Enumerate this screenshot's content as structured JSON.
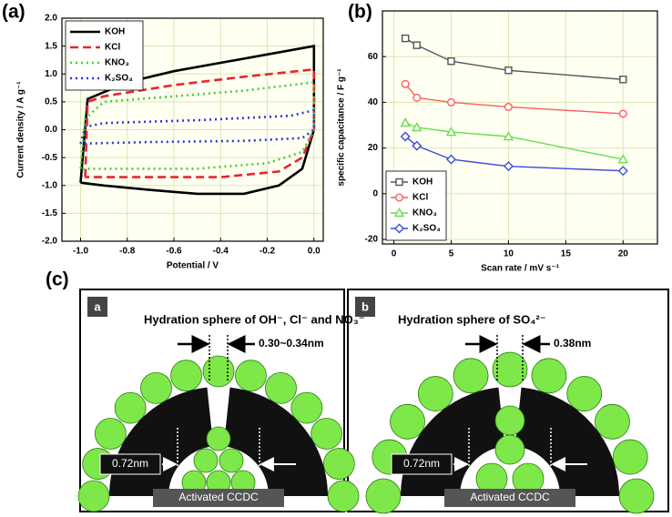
{
  "panel_labels": [
    "(a)",
    "(b)",
    "(c)"
  ],
  "chart_data": [
    {
      "type": "line",
      "xlabel": "Potential / V",
      "ylabel": "Current density / A g⁻¹",
      "xlim": [
        -1.08,
        0.04
      ],
      "ylim": [
        -2.0,
        2.0
      ],
      "xticks": [
        {
          "value": -1.0,
          "label": "-1.0"
        },
        -0.8,
        -0.6,
        -0.4,
        -0.2,
        {
          "value": 0.0,
          "label": "0.0"
        }
      ],
      "yticks": [
        {
          "value": -2.0,
          "label": "-2.0"
        },
        -1.5,
        {
          "value": -1.0,
          "label": "-1.0"
        },
        -0.5,
        {
          "value": 0.0,
          "label": "0.0"
        },
        0.5,
        {
          "value": 1.0,
          "label": "1.0"
        },
        1.5,
        {
          "value": 2.0,
          "label": "2.0"
        }
      ],
      "grid": true,
      "legend": "upper left",
      "series": [
        {
          "name": "KOH",
          "color": "#000000",
          "linestyle": "solid",
          "x": [
            -1.0,
            -0.97,
            -0.8,
            -0.6,
            -0.4,
            -0.2,
            0.0,
            0.0,
            -0.05,
            -0.15,
            -0.3,
            -0.5,
            -0.7,
            -0.9,
            -1.0
          ],
          "values": [
            -0.95,
            0.55,
            0.85,
            1.05,
            1.2,
            1.35,
            1.5,
            0.0,
            -0.7,
            -1.0,
            -1.15,
            -1.15,
            -1.08,
            -1.0,
            -0.95
          ]
        },
        {
          "name": "KCl",
          "color": "#e8262c",
          "linestyle": "dashed",
          "x": [
            -0.98,
            -0.97,
            -0.9,
            -0.6,
            -0.3,
            0.0,
            0.0,
            -0.05,
            -0.15,
            -0.4,
            -0.8,
            -0.98
          ],
          "values": [
            -0.85,
            0.5,
            0.6,
            0.8,
            0.95,
            1.08,
            0.0,
            -0.5,
            -0.75,
            -0.85,
            -0.85,
            -0.85
          ]
        },
        {
          "name": "KNO₃",
          "color": "#4ccc33",
          "linestyle": "dotted",
          "x": [
            -1.0,
            -0.98,
            -0.9,
            -0.6,
            -0.3,
            0.0,
            0.0,
            -0.05,
            -0.2,
            -0.5,
            -1.0
          ],
          "values": [
            -0.7,
            0.2,
            0.5,
            0.6,
            0.7,
            0.85,
            0.0,
            -0.4,
            -0.6,
            -0.7,
            -0.7
          ]
        },
        {
          "name": "K₂SO₄",
          "color": "#2c3ad8",
          "linestyle": "dotted",
          "x": [
            -1.0,
            -0.98,
            -0.9,
            -0.5,
            -0.1,
            0.0,
            0.0,
            -0.05,
            -0.3,
            -0.7,
            -1.0
          ],
          "values": [
            -0.25,
            0.05,
            0.12,
            0.17,
            0.25,
            0.35,
            0.0,
            -0.15,
            -0.2,
            -0.22,
            -0.25
          ]
        }
      ]
    },
    {
      "type": "line",
      "xlabel": "Scan rate / mV s⁻¹",
      "ylabel": "specific capacitance / F g⁻¹",
      "xlim": [
        -1,
        23
      ],
      "ylim": [
        -22,
        80
      ],
      "xticks": [
        0,
        5,
        10,
        15,
        20
      ],
      "yticks": [
        -20,
        0,
        20,
        40,
        60
      ],
      "grid": true,
      "legend": "lower left",
      "series": [
        {
          "name": "KOH",
          "color": "#555555",
          "linestyle": "solid",
          "marker": "square",
          "x": [
            1,
            2,
            5,
            10,
            20
          ],
          "values": [
            68,
            65,
            58,
            54,
            50
          ]
        },
        {
          "name": "KCl",
          "color": "#ff5a5a",
          "linestyle": "solid",
          "marker": "circle",
          "x": [
            1,
            2,
            5,
            10,
            20
          ],
          "values": [
            48,
            42,
            40,
            38,
            35
          ]
        },
        {
          "name": "KNO₃",
          "color": "#66e04d",
          "linestyle": "solid",
          "marker": "triangle",
          "x": [
            1,
            2,
            5,
            10,
            20
          ],
          "values": [
            31,
            29,
            27,
            25,
            15
          ]
        },
        {
          "name": "K₂SO₄",
          "color": "#3a4be0",
          "linestyle": "solid",
          "marker": "diamond",
          "x": [
            1,
            2,
            5,
            10,
            20
          ],
          "values": [
            25,
            21,
            15,
            12,
            10
          ]
        }
      ]
    }
  ],
  "diagram": {
    "panels": [
      {
        "tag": "a",
        "title": "Hydration sphere of OH⁻, Cl⁻ and NO₃⁻",
        "gap": "0.30~0.34nm",
        "pore": "0.72nm",
        "label": "Activated CCDC"
      },
      {
        "tag": "b",
        "title": "Hydration sphere of SO₄²⁻",
        "gap": "0.38nm",
        "pore": "0.72nm",
        "label": "Activated CCDC"
      }
    ]
  }
}
